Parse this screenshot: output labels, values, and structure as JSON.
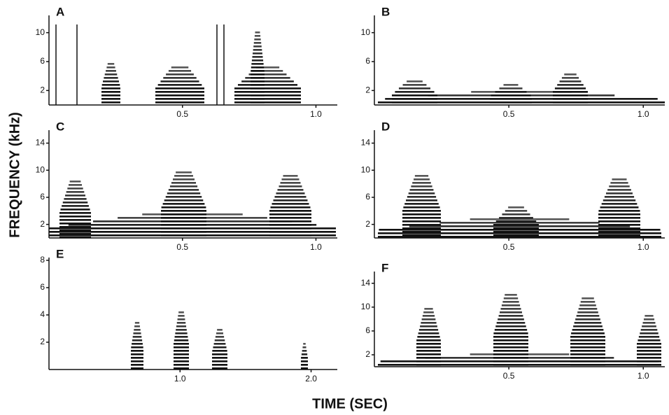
{
  "figure": {
    "ylabel": "FREQUENCY (kHz)",
    "xlabel": "TIME (SEC)"
  },
  "chart_data": [
    {
      "type": "spectrogram",
      "title": "A",
      "xlim": [
        0,
        1.08
      ],
      "xticks": [
        0.5,
        {
          "value": 1,
          "label": "1.0"
        }
      ],
      "ylim": [
        0,
        12
      ],
      "yticks": [
        2,
        6,
        10
      ]
    },
    {
      "type": "spectrogram",
      "title": "B",
      "xlim": [
        0,
        1.08
      ],
      "xticks": [
        0.5,
        {
          "value": 1,
          "label": "1.0"
        }
      ],
      "ylim": [
        0,
        12
      ],
      "yticks": [
        2,
        6,
        10
      ]
    },
    {
      "type": "spectrogram",
      "title": "C",
      "xlim": [
        0,
        1.08
      ],
      "xticks": [
        0.5,
        {
          "value": 1,
          "label": "1.0"
        }
      ],
      "ylim": [
        0,
        15.5
      ],
      "yticks": [
        2,
        6,
        10,
        14
      ]
    },
    {
      "type": "spectrogram",
      "title": "D",
      "xlim": [
        0,
        1.08
      ],
      "xticks": [
        0.5,
        {
          "value": 1,
          "label": "1.0"
        }
      ],
      "ylim": [
        0,
        15.5
      ],
      "yticks": [
        2,
        6,
        10,
        14
      ]
    },
    {
      "type": "spectrogram",
      "title": "E",
      "xlim": [
        0,
        2.2
      ],
      "xticks": [
        {
          "value": 1,
          "label": "1.0"
        },
        {
          "value": 2,
          "label": "2.0"
        }
      ],
      "ylim": [
        0,
        8
      ],
      "yticks": [
        2,
        4,
        6,
        8
      ]
    },
    {
      "type": "spectrogram",
      "title": "F",
      "xlim": [
        0,
        1.08
      ],
      "xticks": [
        0.5,
        {
          "value": 1,
          "label": "1.0"
        }
      ],
      "ylim": [
        0,
        15.5
      ],
      "yticks": [
        2,
        6,
        10,
        14
      ]
    }
  ]
}
